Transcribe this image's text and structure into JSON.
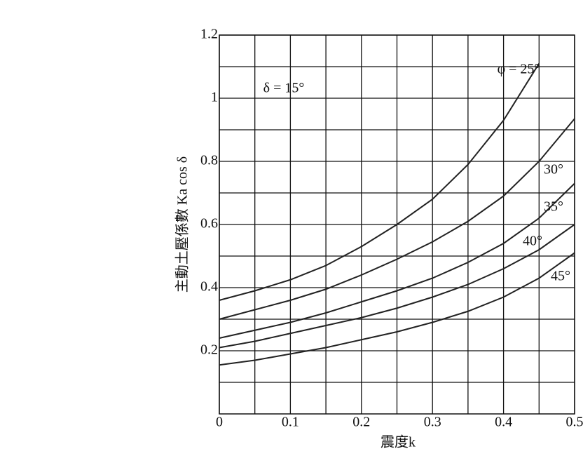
{
  "chart_data": {
    "type": "line",
    "title": "δ = 15°",
    "x_label": "震度k",
    "y_label": "主動土壓係數 Ka cos δ",
    "x": [
      0,
      0.05,
      0.1,
      0.15,
      0.2,
      0.25,
      0.3,
      0.35,
      0.4,
      0.45,
      0.5
    ],
    "series": [
      {
        "name": "φ = 25°",
        "color": "#222222",
        "values": [
          0.36,
          0.39,
          0.425,
          0.47,
          0.53,
          0.6,
          0.68,
          0.79,
          0.93,
          1.11,
          null
        ]
      },
      {
        "name": "30°",
        "color": "#222222",
        "values": [
          0.3,
          0.33,
          0.36,
          0.395,
          0.44,
          0.49,
          0.545,
          0.61,
          0.69,
          0.8,
          0.935
        ]
      },
      {
        "name": "35°",
        "color": "#222222",
        "values": [
          0.24,
          0.265,
          0.29,
          0.32,
          0.355,
          0.39,
          0.43,
          0.48,
          0.54,
          0.62,
          0.73
        ]
      },
      {
        "name": "40°",
        "color": "#222222",
        "values": [
          0.21,
          0.23,
          0.255,
          0.28,
          0.305,
          0.335,
          0.37,
          0.41,
          0.46,
          0.52,
          0.6
        ]
      },
      {
        "name": "45°",
        "color": "#222222",
        "values": [
          0.155,
          0.17,
          0.19,
          0.21,
          0.235,
          0.26,
          0.29,
          0.325,
          0.37,
          0.43,
          0.51
        ]
      }
    ],
    "xlim": [
      0,
      0.5
    ],
    "ylim": [
      0,
      1.2
    ],
    "xticks": [
      0,
      0.1,
      0.2,
      0.3,
      0.4,
      0.5
    ],
    "yticks": [
      0.2,
      0.4,
      0.6,
      0.8,
      1.0,
      1.2
    ],
    "x_minor_ticks": [
      0.05,
      0.15,
      0.25,
      0.35,
      0.45
    ],
    "y_minor_ticks": [
      0.1,
      0.3,
      0.5,
      0.7,
      0.9,
      1.1
    ],
    "grid": true
  }
}
